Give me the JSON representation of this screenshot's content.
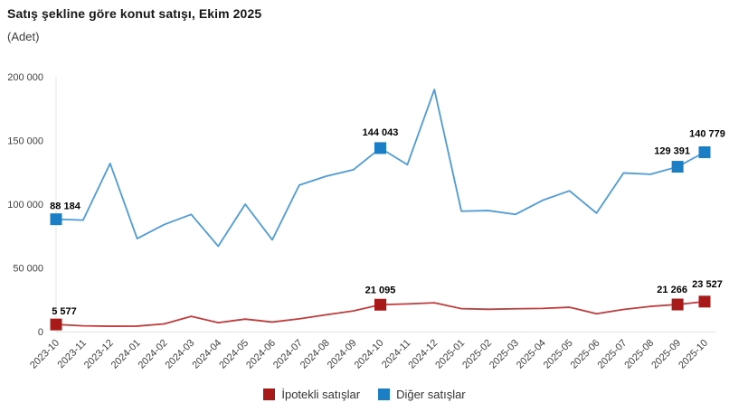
{
  "header": {
    "title": "Satış şekline göre konut satışı, Ekim 2025",
    "subtitle": "(Adet)"
  },
  "chart_data": {
    "type": "line",
    "title": "Satış şekline göre konut satışı, Ekim 2025",
    "unit_label": "(Adet)",
    "x_categories": [
      "2023-10",
      "2023-11",
      "2023-12",
      "2024-01",
      "2024-02",
      "2024-03",
      "2024-04",
      "2024-05",
      "2024-06",
      "2024-07",
      "2024-08",
      "2024-09",
      "2024-10",
      "2024-11",
      "2024-12",
      "2025-01",
      "2025-02",
      "2025-03",
      "2025-04",
      "2025-05",
      "2025-06",
      "2025-07",
      "2025-08",
      "2025-09",
      "2025-10"
    ],
    "ylim": [
      0,
      200000
    ],
    "ytick_values": [
      0,
      50000,
      100000,
      150000,
      200000
    ],
    "ytick_labels": [
      "0",
      "50 000",
      "100 000",
      "150 000",
      "200 000"
    ],
    "grid": false,
    "legend_position": "bottom",
    "axis_color": "#e4e4e4",
    "tick_text_color": "#3f3f3f",
    "data_label_color": "#000000",
    "series": [
      {
        "name": "İpotekli satışlar",
        "line_color": "#c13c3c",
        "marker_color": "#a81a1a",
        "values": [
          5577,
          4500,
          4200,
          4300,
          6000,
          12000,
          7000,
          9800,
          7500,
          10000,
          13200,
          16200,
          21095,
          21700,
          22600,
          18000,
          17500,
          17900,
          18200,
          19100,
          14000,
          17400,
          19800,
          21266,
          23527
        ],
        "point_labels": [
          {
            "index": 0,
            "text": "5 577",
            "dx": 9,
            "dy": 0
          },
          {
            "index": 12,
            "text": "21 095",
            "dx": 0,
            "dy": -2
          },
          {
            "index": 23,
            "text": "21 266",
            "dx": -6,
            "dy": -2
          },
          {
            "index": 24,
            "text": "23 527",
            "dx": 3,
            "dy": -5
          }
        ]
      },
      {
        "name": "Diğer satışlar",
        "line_color": "#4f9bd7",
        "marker_color": "#1c7fc5",
        "values": [
          88184,
          87500,
          132000,
          73000,
          84000,
          92000,
          67000,
          100000,
          72000,
          115000,
          122000,
          127000,
          144043,
          131000,
          190000,
          94500,
          95000,
          92000,
          103000,
          110500,
          93000,
          124500,
          123500,
          129391,
          140779
        ],
        "point_labels": [
          {
            "index": 0,
            "text": "88 184",
            "dx": 10,
            "dy": 0
          },
          {
            "index": 12,
            "text": "144 043",
            "dx": 0,
            "dy": -3
          },
          {
            "index": 23,
            "text": "129 391",
            "dx": -6,
            "dy": -3
          },
          {
            "index": 24,
            "text": "140 779",
            "dx": 3,
            "dy": -6
          }
        ]
      }
    ]
  },
  "legend": {
    "items": [
      {
        "label": "İpotekli satışlar",
        "color": "#a81a1a"
      },
      {
        "label": "Diğer satışlar",
        "color": "#1c7fc5"
      }
    ]
  }
}
